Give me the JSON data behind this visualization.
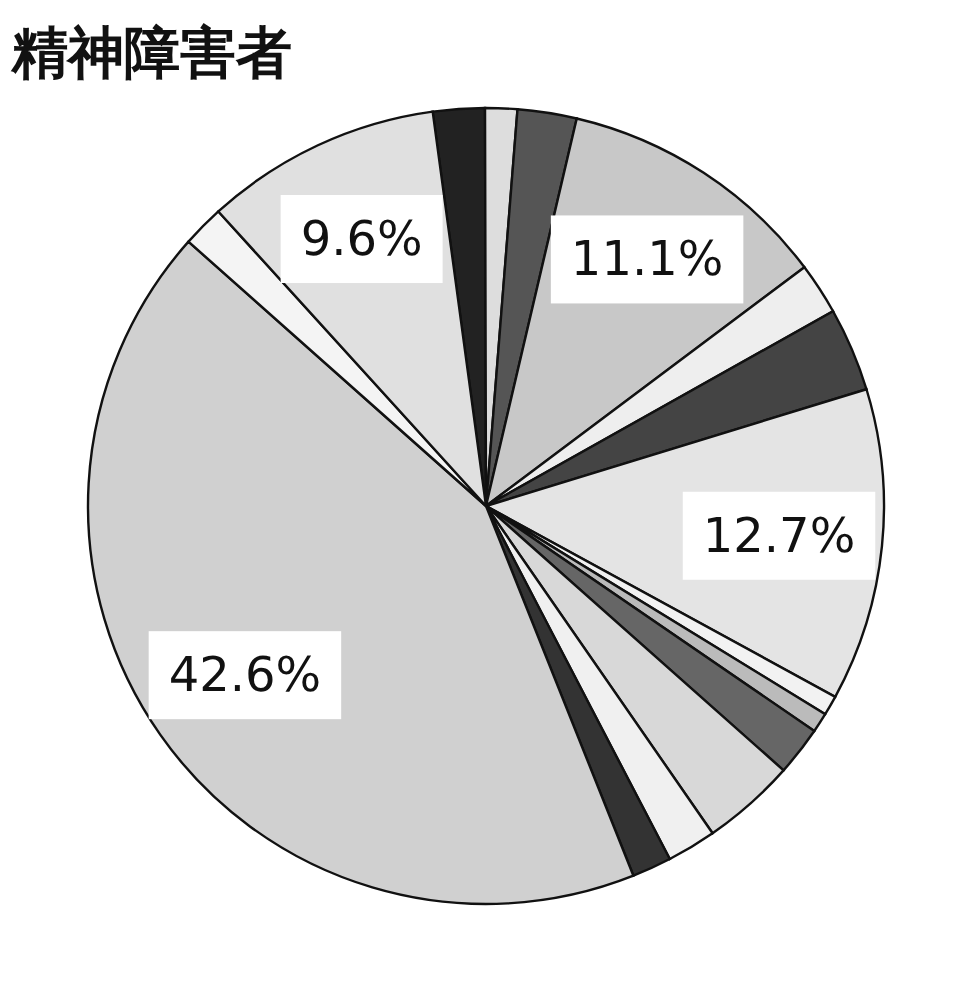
{
  "chart_data": {
    "type": "pie",
    "title": "精神障害者",
    "categories": [
      null,
      null,
      null,
      null,
      null,
      null,
      null,
      null,
      null,
      null,
      null,
      null,
      null,
      null,
      null,
      null
    ],
    "values": [
      2.1,
      1.3,
      2.4,
      11.1,
      2.1,
      3.4,
      12.7,
      0.8,
      0.8,
      2.0,
      3.8,
      2.0,
      1.6,
      42.6,
      1.7,
      9.6
    ],
    "value_labels": [
      null,
      null,
      null,
      "11.1%",
      null,
      null,
      "12.7%",
      null,
      null,
      null,
      null,
      null,
      null,
      "42.6%",
      null,
      "9.6%"
    ],
    "colors": [
      "#222222",
      "#dddddd",
      "#555555",
      "#c8c8c8",
      "#eeeeee",
      "#444444",
      "#e4e4e4",
      "#f2f2f2",
      "#bbbbbb",
      "#666666",
      "#d8d8d8",
      "#f0f0f0",
      "#333333",
      "#d0d0d0",
      "#f4f4f4",
      "#e0e0e0"
    ]
  }
}
